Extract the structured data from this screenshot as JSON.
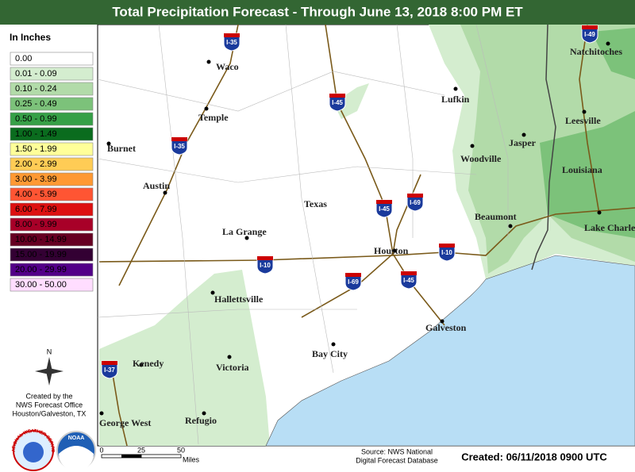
{
  "header": {
    "title": "Total Precipitation Forecast - Through June 13, 2018 8:00 PM ET"
  },
  "legend": {
    "title": "In Inches",
    "items": [
      {
        "label": "0.00",
        "color": "#ffffff"
      },
      {
        "label": "0.01 - 0.09",
        "color": "#d4edcf"
      },
      {
        "label": "0.10 - 0.24",
        "color": "#b2dba9"
      },
      {
        "label": "0.25 - 0.49",
        "color": "#7cc27a"
      },
      {
        "label": "0.50 - 0.99",
        "color": "#36a047"
      },
      {
        "label": "1.00 - 1.49",
        "color": "#0a6c1e"
      },
      {
        "label": "1.50 - 1.99",
        "color": "#ffff99"
      },
      {
        "label": "2.00 - 2.99",
        "color": "#ffcc55"
      },
      {
        "label": "3.00 - 3.99",
        "color": "#ff9933"
      },
      {
        "label": "4.00 - 5.99",
        "color": "#ff5533"
      },
      {
        "label": "6.00 - 7.99",
        "color": "#dd1111"
      },
      {
        "label": "8.00 - 9.99",
        "color": "#a80028"
      },
      {
        "label": "10.00 - 14.99",
        "color": "#660022"
      },
      {
        "label": "15.00 - 19.99",
        "color": "#330033"
      },
      {
        "label": "20.00 - 29.99",
        "color": "#520088"
      },
      {
        "label": "30.00 - 50.00",
        "color": "#ffddff"
      }
    ]
  },
  "map": {
    "states": [
      "Texas",
      "Louisiana"
    ],
    "cities": [
      "Waco",
      "Temple",
      "Burnet",
      "Austin",
      "La Grange",
      "Hallettsville",
      "Kenedy",
      "Victoria",
      "George West",
      "Refugio",
      "Bay City",
      "Houston",
      "Galveston",
      "Lufkin",
      "Woodville",
      "Jasper",
      "Beaumont",
      "Natchitoches",
      "Leesville",
      "Lake Charles"
    ],
    "interstates": [
      "I-35",
      "I-35",
      "I-45",
      "I-45",
      "I-45",
      "I-69",
      "I-69",
      "I-10",
      "I-10",
      "I-37",
      "I-49"
    ]
  },
  "compass": "N",
  "credits": {
    "lines": [
      "Created by the",
      "NWS Forecast Office",
      "Houston/Galveston, TX"
    ],
    "logos": [
      "NATIONAL WEATHER SERVICE",
      "NOAA"
    ]
  },
  "scale": {
    "labels": [
      "0",
      "25",
      "50"
    ],
    "unit": "Miles"
  },
  "source": [
    "Source: NWS National",
    "Digital Forecast Database"
  ],
  "created": "Created: 06/11/2018 0900 UTC"
}
